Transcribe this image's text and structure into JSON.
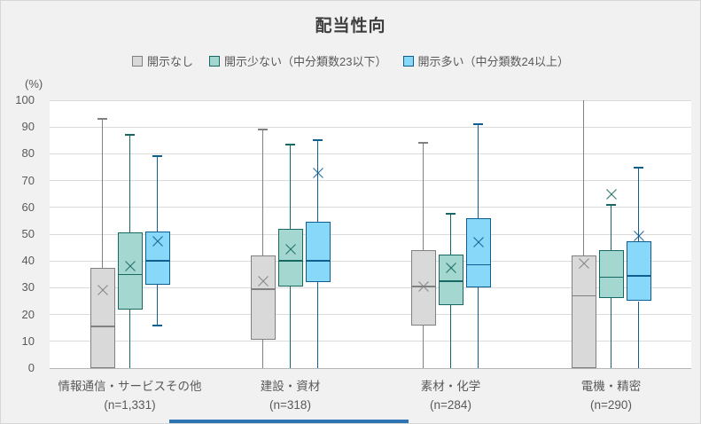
{
  "chart_data": {
    "type": "boxplot",
    "title": "配当性向",
    "unit_label": "(%)",
    "ylim": [
      0,
      100
    ],
    "yticks": [
      0,
      10,
      20,
      30,
      40,
      50,
      60,
      70,
      80,
      90,
      100
    ],
    "grid": "horizontal",
    "legend_position": "top",
    "series": [
      {
        "name": "開示なし",
        "fill": "#d9d9d9",
        "stroke": "#808080"
      },
      {
        "name": "開示少ない（中分類数23以下）",
        "fill": "#a3d7d0",
        "stroke": "#176863"
      },
      {
        "name": "開示多い（中分類数24以上）",
        "fill": "#87d8f9",
        "stroke": "#0f5e90"
      }
    ],
    "groups": [
      {
        "label": "情報通信・サービスその他",
        "n_label": "(n=1,331)",
        "boxes": [
          {
            "whisker_high": 93,
            "cap_high": true,
            "q3": 37.5,
            "median": 15.5,
            "q1": 0,
            "whisker_low": 0,
            "cap_low": false,
            "mean": 29
          },
          {
            "whisker_high": 87,
            "cap_high": true,
            "q3": 50.5,
            "median": 35,
            "q1": 22,
            "whisker_low": 0,
            "cap_low": false,
            "mean": 38
          },
          {
            "whisker_high": 79,
            "cap_high": true,
            "q3": 51,
            "median": 40,
            "q1": 31,
            "whisker_low": 16,
            "cap_low": true,
            "mean": 47.5
          }
        ]
      },
      {
        "label": "建設・資材",
        "n_label": "(n=318)",
        "boxes": [
          {
            "whisker_high": 89,
            "cap_high": true,
            "q3": 42,
            "median": 29.5,
            "q1": 10.5,
            "whisker_low": 0,
            "cap_low": false,
            "mean": 32.5
          },
          {
            "whisker_high": 83.5,
            "cap_high": true,
            "q3": 52,
            "median": 40,
            "q1": 30.5,
            "whisker_low": 0,
            "cap_low": false,
            "mean": 44.5
          },
          {
            "whisker_high": 85,
            "cap_high": true,
            "q3": 54.5,
            "median": 40,
            "q1": 32,
            "whisker_low": 0,
            "cap_low": false,
            "mean": 73
          }
        ]
      },
      {
        "label": "素材・化学",
        "n_label": "(n=284)",
        "boxes": [
          {
            "whisker_high": 84,
            "cap_high": true,
            "q3": 44,
            "median": 30.5,
            "q1": 16,
            "whisker_low": 0,
            "cap_low": false,
            "mean": 30.5
          },
          {
            "whisker_high": 57.5,
            "cap_high": true,
            "q3": 42.5,
            "median": 32.5,
            "q1": 23.5,
            "whisker_low": 0,
            "cap_low": false,
            "mean": 37.5
          },
          {
            "whisker_high": 91,
            "cap_high": true,
            "q3": 56,
            "median": 38.5,
            "q1": 30,
            "whisker_low": 0,
            "cap_low": false,
            "mean": 47
          }
        ]
      },
      {
        "label": "電機・精密",
        "n_label": "(n=290)",
        "boxes": [
          {
            "whisker_high": 100,
            "cap_high": false,
            "q3": 42,
            "median": 27,
            "q1": 0,
            "whisker_low": 0,
            "cap_low": false,
            "mean": 39
          },
          {
            "whisker_high": 61,
            "cap_high": true,
            "q3": 44,
            "median": 34,
            "q1": 26,
            "whisker_low": 0,
            "cap_low": false,
            "mean": 65
          },
          {
            "whisker_high": 75,
            "cap_high": true,
            "q3": 47.5,
            "median": 34.5,
            "q1": 25,
            "whisker_low": 0,
            "cap_low": false,
            "mean": 49.5
          }
        ]
      }
    ],
    "colors": {
      "background": "#f1f1f1",
      "plot_background": "#ffffff",
      "gridline": "#dbdbdb",
      "axis_text": "#595959",
      "bottom_strip": "#2e74b5"
    }
  }
}
